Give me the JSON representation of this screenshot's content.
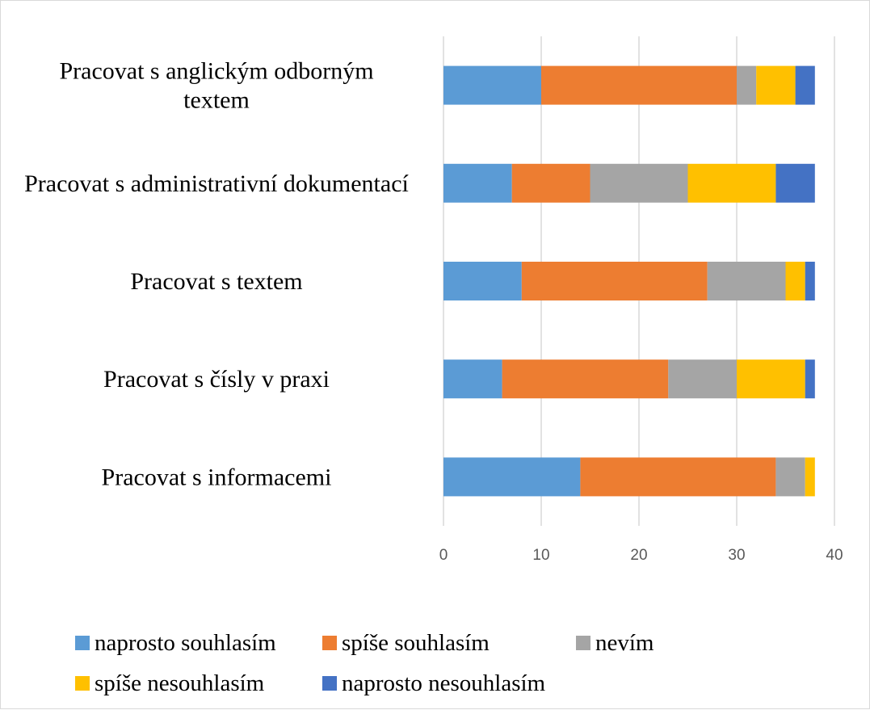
{
  "chart_data": {
    "type": "bar",
    "orientation": "horizontal",
    "stacked": true,
    "categories": [
      "Pracovat s anglickým odborným textem",
      "Pracovat s administrativní dokumentací",
      "Pracovat s textem",
      "Pracovat s čísly v praxi",
      "Pracovat s informacemi"
    ],
    "category_lines": [
      [
        "Pracovat s anglickým odborným",
        "textem"
      ],
      [
        "Pracovat s administrativní dokumentací"
      ],
      [
        "Pracovat s textem"
      ],
      [
        "Pracovat s čísly v praxi"
      ],
      [
        "Pracovat s informacemi"
      ]
    ],
    "series": [
      {
        "name": "naprosto souhlasím",
        "color": "#5b9bd5",
        "values": [
          10,
          7,
          8,
          6,
          14
        ]
      },
      {
        "name": "spíše souhlasím",
        "color": "#ed7d31",
        "values": [
          20,
          8,
          19,
          17,
          20
        ]
      },
      {
        "name": "nevím",
        "color": "#a5a5a5",
        "values": [
          2,
          10,
          8,
          7,
          3
        ]
      },
      {
        "name": "spíše nesouhlasím",
        "color": "#ffc000",
        "values": [
          4,
          9,
          2,
          7,
          1
        ]
      },
      {
        "name": "naprosto nesouhlasím",
        "color": "#4472c4",
        "values": [
          2,
          4,
          1,
          1,
          0
        ]
      }
    ],
    "xlim": [
      0,
      40
    ],
    "x_ticks": [
      "0",
      "10",
      "20",
      "30",
      "40"
    ],
    "grid": true,
    "legend_position": "bottom",
    "title": "",
    "xlabel": "",
    "ylabel": ""
  }
}
